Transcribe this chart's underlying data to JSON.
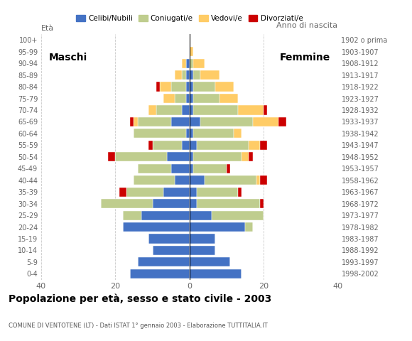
{
  "age_groups": [
    "0-4",
    "5-9",
    "10-14",
    "15-19",
    "20-24",
    "25-29",
    "30-34",
    "35-39",
    "40-44",
    "45-49",
    "50-54",
    "55-59",
    "60-64",
    "65-69",
    "70-74",
    "75-79",
    "80-84",
    "85-89",
    "90-94",
    "95-99",
    "100+"
  ],
  "birth_years": [
    "1998-2002",
    "1993-1997",
    "1988-1992",
    "1983-1987",
    "1978-1982",
    "1973-1977",
    "1968-1972",
    "1963-1967",
    "1958-1962",
    "1953-1957",
    "1948-1952",
    "1943-1947",
    "1938-1942",
    "1933-1937",
    "1928-1932",
    "1923-1927",
    "1918-1922",
    "1913-1917",
    "1908-1912",
    "1903-1907",
    "1902 o prima"
  ],
  "colors": {
    "celibe": "#4472C4",
    "coniugato": "#BFCD8E",
    "vedovo": "#FFCC66",
    "divorziato": "#CC0000"
  },
  "maschi": {
    "celibe": [
      16,
      14,
      10,
      11,
      18,
      13,
      10,
      7,
      4,
      5,
      6,
      2,
      1,
      5,
      2,
      1,
      1,
      1,
      1,
      0,
      0
    ],
    "coniugato": [
      0,
      0,
      0,
      0,
      0,
      5,
      14,
      10,
      11,
      9,
      14,
      8,
      14,
      9,
      7,
      3,
      4,
      1,
      0,
      0,
      0
    ],
    "vedovo": [
      0,
      0,
      0,
      0,
      0,
      0,
      0,
      0,
      0,
      0,
      0,
      0,
      0,
      1,
      2,
      3,
      3,
      2,
      1,
      0,
      0
    ],
    "divorziato": [
      0,
      0,
      0,
      0,
      0,
      0,
      0,
      2,
      0,
      0,
      2,
      1,
      0,
      1,
      0,
      0,
      1,
      0,
      0,
      0,
      0
    ]
  },
  "femmine": {
    "celibe": [
      14,
      11,
      7,
      7,
      15,
      6,
      2,
      2,
      4,
      1,
      1,
      2,
      1,
      3,
      1,
      1,
      1,
      1,
      0,
      0,
      0
    ],
    "coniugato": [
      0,
      0,
      0,
      0,
      2,
      14,
      17,
      11,
      14,
      9,
      13,
      14,
      11,
      14,
      12,
      7,
      6,
      2,
      1,
      0,
      0
    ],
    "vedovo": [
      0,
      0,
      0,
      0,
      0,
      0,
      0,
      0,
      1,
      0,
      2,
      3,
      2,
      7,
      7,
      5,
      5,
      5,
      3,
      1,
      0
    ],
    "divorziato": [
      0,
      0,
      0,
      0,
      0,
      0,
      1,
      1,
      2,
      1,
      1,
      2,
      0,
      2,
      1,
      0,
      0,
      0,
      0,
      0,
      0
    ]
  },
  "title": "Popolazione per età, sesso e stato civile - 2003",
  "subtitle": "COMUNE DI VENTOTENE (LT) - Dati ISTAT 1° gennaio 2003 - Elaborazione TUTTITALIA.IT",
  "xlabel_left": "Maschi",
  "xlabel_right": "Femmine",
  "eta_label": "Età",
  "anno_label": "Anno di nascita",
  "xlim": 40,
  "legend_labels": [
    "Celibi/Nubili",
    "Coniugati/e",
    "Vedovi/e",
    "Divorziati/e"
  ],
  "background_color": "#FFFFFF",
  "grid_color": "#BBBBBB"
}
